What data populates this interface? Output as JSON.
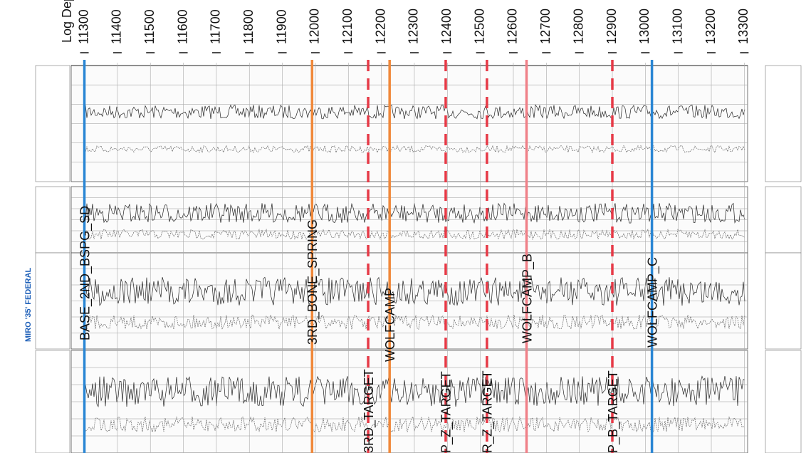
{
  "chart_data": {
    "type": "well-log",
    "title": "MIRO '35' FEDERAL",
    "x_label": "Log Depth(ft)",
    "xlim": [
      11260,
      13310
    ],
    "xticks": [
      11300,
      11400,
      11500,
      11600,
      11700,
      11800,
      11900,
      12000,
      12100,
      12200,
      12300,
      12400,
      12500,
      12600,
      12700,
      12800,
      12900,
      13000,
      13100,
      13200,
      13300
    ],
    "grid": true,
    "tops": [
      {
        "name": "BASE_2ND_BSPG_SD",
        "depth": 11300,
        "color": "#2a86d4",
        "dashed": false
      },
      {
        "name": "3RD_BONE_SPRING",
        "depth": 11990,
        "color": "#f0883a",
        "dashed": false
      },
      {
        "name": "3RD_TARGET",
        "depth": 12160,
        "color": "#e63946",
        "dashed": true
      },
      {
        "name": "WOLFCAMP",
        "depth": 12225,
        "color": "#f0883a",
        "dashed": false
      },
      {
        "name": "P_Z_TARGET",
        "depth": 12395,
        "color": "#e63946",
        "dashed": true
      },
      {
        "name": "R_Z_TARGET",
        "depth": 12520,
        "color": "#e63946",
        "dashed": true
      },
      {
        "name": "WOLFCAMP_B",
        "depth": 12640,
        "color": "#f08088",
        "dashed": false
      },
      {
        "name": "P_B_TARGET",
        "depth": 12900,
        "color": "#e63946",
        "dashed": true
      },
      {
        "name": "WOLFCAMP_C",
        "depth": 13020,
        "color": "#2a86d4",
        "dashed": false
      }
    ]
  }
}
